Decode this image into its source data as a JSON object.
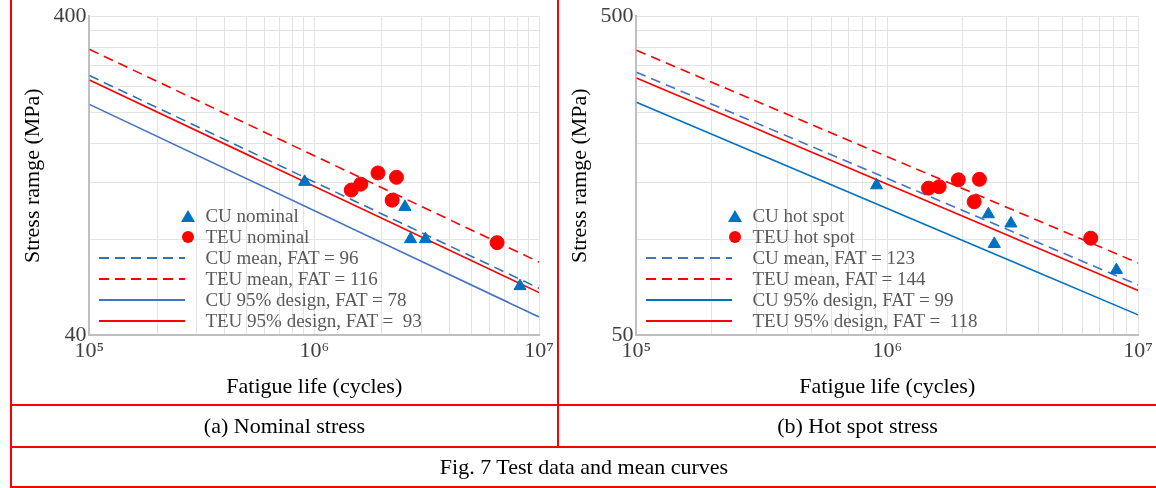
{
  "chart_data": [
    {
      "type": "scatter",
      "title": "(a) Nominal stress",
      "xlabel": "Fatigue life (cycles)",
      "ylabel": "Stress ramge (MPa)",
      "log": "xy",
      "grid": true,
      "legend": "bottom left",
      "annotations": [
        "Fig. 7 Test data and mean curves"
      ],
      "xlim": [
        100000,
        10000000
      ],
      "xticks": [
        {
          "value": 100000,
          "label": "10⁵"
        },
        {
          "value": 200000,
          "label": null
        },
        {
          "value": 300000,
          "label": null
        },
        {
          "value": 400000,
          "label": null
        },
        {
          "value": 500000,
          "label": null
        },
        {
          "value": 600000,
          "label": null
        },
        {
          "value": 700000,
          "label": null
        },
        {
          "value": 800000,
          "label": null
        },
        {
          "value": 900000,
          "label": null
        },
        {
          "value": 1000000,
          "label": "10⁶"
        },
        {
          "value": 2000000,
          "label": null
        },
        {
          "value": 3000000,
          "label": null
        },
        {
          "value": 4000000,
          "label": null
        },
        {
          "value": 5000000,
          "label": null
        },
        {
          "value": 6000000,
          "label": null
        },
        {
          "value": 7000000,
          "label": null
        },
        {
          "value": 8000000,
          "label": null
        },
        {
          "value": 9000000,
          "label": null
        },
        {
          "value": 10000000,
          "label": "10⁷"
        }
      ],
      "ylim": [
        40,
        400
      ],
      "yticks": [
        40,
        {
          "value": 80,
          "label": null
        },
        {
          "value": 120,
          "label": null
        },
        {
          "value": 160,
          "label": null
        },
        {
          "value": 200,
          "label": null
        },
        {
          "value": 240,
          "label": null
        },
        {
          "value": 280,
          "label": null
        },
        {
          "value": 320,
          "label": null
        },
        {
          "value": 360,
          "label": null
        },
        400
      ],
      "series": [
        {
          "name": "CU nominal",
          "type": "scatter",
          "marker": "triangle",
          "color": "#0070c0",
          "x": [
            906000,
            2530000,
            2680000,
            3120000,
            8220000
          ],
          "values": [
            121,
            101,
            80,
            80,
            57
          ]
        },
        {
          "name": "TEU nominal",
          "type": "scatter",
          "marker": "circle",
          "color": "#ff0000",
          "x": [
            1460000,
            1610000,
            1920000,
            2320000,
            2220000,
            6500000
          ],
          "values": [
            114,
            119,
            129,
            125,
            106,
            78
          ]
        },
        {
          "name": "CU mean, FAT = 96",
          "type": "line",
          "line_style": "dashed",
          "color": "#2e75b6",
          "x": [
            100000,
            10000000
          ],
          "values": [
            260.6,
            56.1
          ]
        },
        {
          "name": "TEU mean, FAT = 116",
          "type": "line",
          "line_style": "dashed",
          "color": "#ff0000",
          "x": [
            100000,
            10000000
          ],
          "values": [
            314.9,
            67.8
          ]
        },
        {
          "name": "CU 95% design, FAT = 78",
          "type": "line",
          "line_style": "solid",
          "color": "#4472c4",
          "x": [
            100000,
            10000000
          ],
          "values": [
            211.7,
            45.6
          ]
        },
        {
          "name": "TEU 95% design, FAT =  93",
          "type": "line",
          "line_style": "solid",
          "color": "#ff0000",
          "x": [
            100000,
            10000000
          ],
          "values": [
            252.4,
            54.4
          ]
        }
      ]
    },
    {
      "type": "scatter",
      "title": "(b) Hot spot stress",
      "xlabel": "Fatigue life (cycles)",
      "ylabel": "Stress ramge (MPa)",
      "log": "xy",
      "grid": true,
      "legend": "bottom left",
      "xlim": [
        100000,
        10000000
      ],
      "xticks": [
        {
          "value": 100000,
          "label": "10⁵"
        },
        {
          "value": 200000,
          "label": null
        },
        {
          "value": 300000,
          "label": null
        },
        {
          "value": 400000,
          "label": null
        },
        {
          "value": 500000,
          "label": null
        },
        {
          "value": 600000,
          "label": null
        },
        {
          "value": 700000,
          "label": null
        },
        {
          "value": 800000,
          "label": null
        },
        {
          "value": 900000,
          "label": null
        },
        {
          "value": 1000000,
          "label": "10⁶"
        },
        {
          "value": 2000000,
          "label": null
        },
        {
          "value": 3000000,
          "label": null
        },
        {
          "value": 4000000,
          "label": null
        },
        {
          "value": 5000000,
          "label": null
        },
        {
          "value": 6000000,
          "label": null
        },
        {
          "value": 7000000,
          "label": null
        },
        {
          "value": 8000000,
          "label": null
        },
        {
          "value": 9000000,
          "label": null
        },
        {
          "value": 10000000,
          "label": "10⁷"
        }
      ],
      "ylim": [
        50,
        500
      ],
      "yticks": [
        50,
        {
          "value": 100,
          "label": null
        },
        {
          "value": 150,
          "label": null
        },
        {
          "value": 200,
          "label": null
        },
        {
          "value": 250,
          "label": null
        },
        {
          "value": 300,
          "label": null
        },
        {
          "value": 350,
          "label": null
        },
        {
          "value": 400,
          "label": null
        },
        {
          "value": 450,
          "label": null
        },
        500
      ],
      "series": [
        {
          "name": "CU hot spot",
          "type": "scatter",
          "marker": "triangle",
          "color": "#0070c0",
          "x": [
            906000,
            2530000,
            3110000,
            2670000,
            8190000
          ],
          "values": [
            147.5,
            119.7,
            112,
            96.6,
            80
          ]
        },
        {
          "name": "TEU hot spot",
          "type": "scatter",
          "marker": "circle",
          "color": "#ff0000",
          "x": [
            1460000,
            1610000,
            1920000,
            2330000,
            2220000,
            6470000
          ],
          "values": [
            144.5,
            146,
            153.5,
            154,
            131,
            100.7
          ]
        },
        {
          "name": "CU mean, FAT = 123",
          "type": "line",
          "line_style": "dashed",
          "color": "#4472c4",
          "x": [
            100000,
            10000000
          ],
          "values": [
            333.8,
            71.9
          ]
        },
        {
          "name": "TEU mean, FAT = 144",
          "type": "line",
          "line_style": "dashed",
          "color": "#ff0000",
          "x": [
            100000,
            10000000
          ],
          "values": [
            390.8,
            84.2
          ]
        },
        {
          "name": "CU 95% design, FAT = 99",
          "type": "line",
          "line_style": "solid",
          "color": "#0070c0",
          "x": [
            100000,
            10000000
          ],
          "values": [
            268.7,
            57.9
          ]
        },
        {
          "name": "TEU 95% design, FAT =  118",
          "type": "line",
          "line_style": "solid",
          "color": "#ff0000",
          "x": [
            100000,
            10000000
          ],
          "values": [
            320.3,
            69.0
          ]
        }
      ]
    }
  ]
}
